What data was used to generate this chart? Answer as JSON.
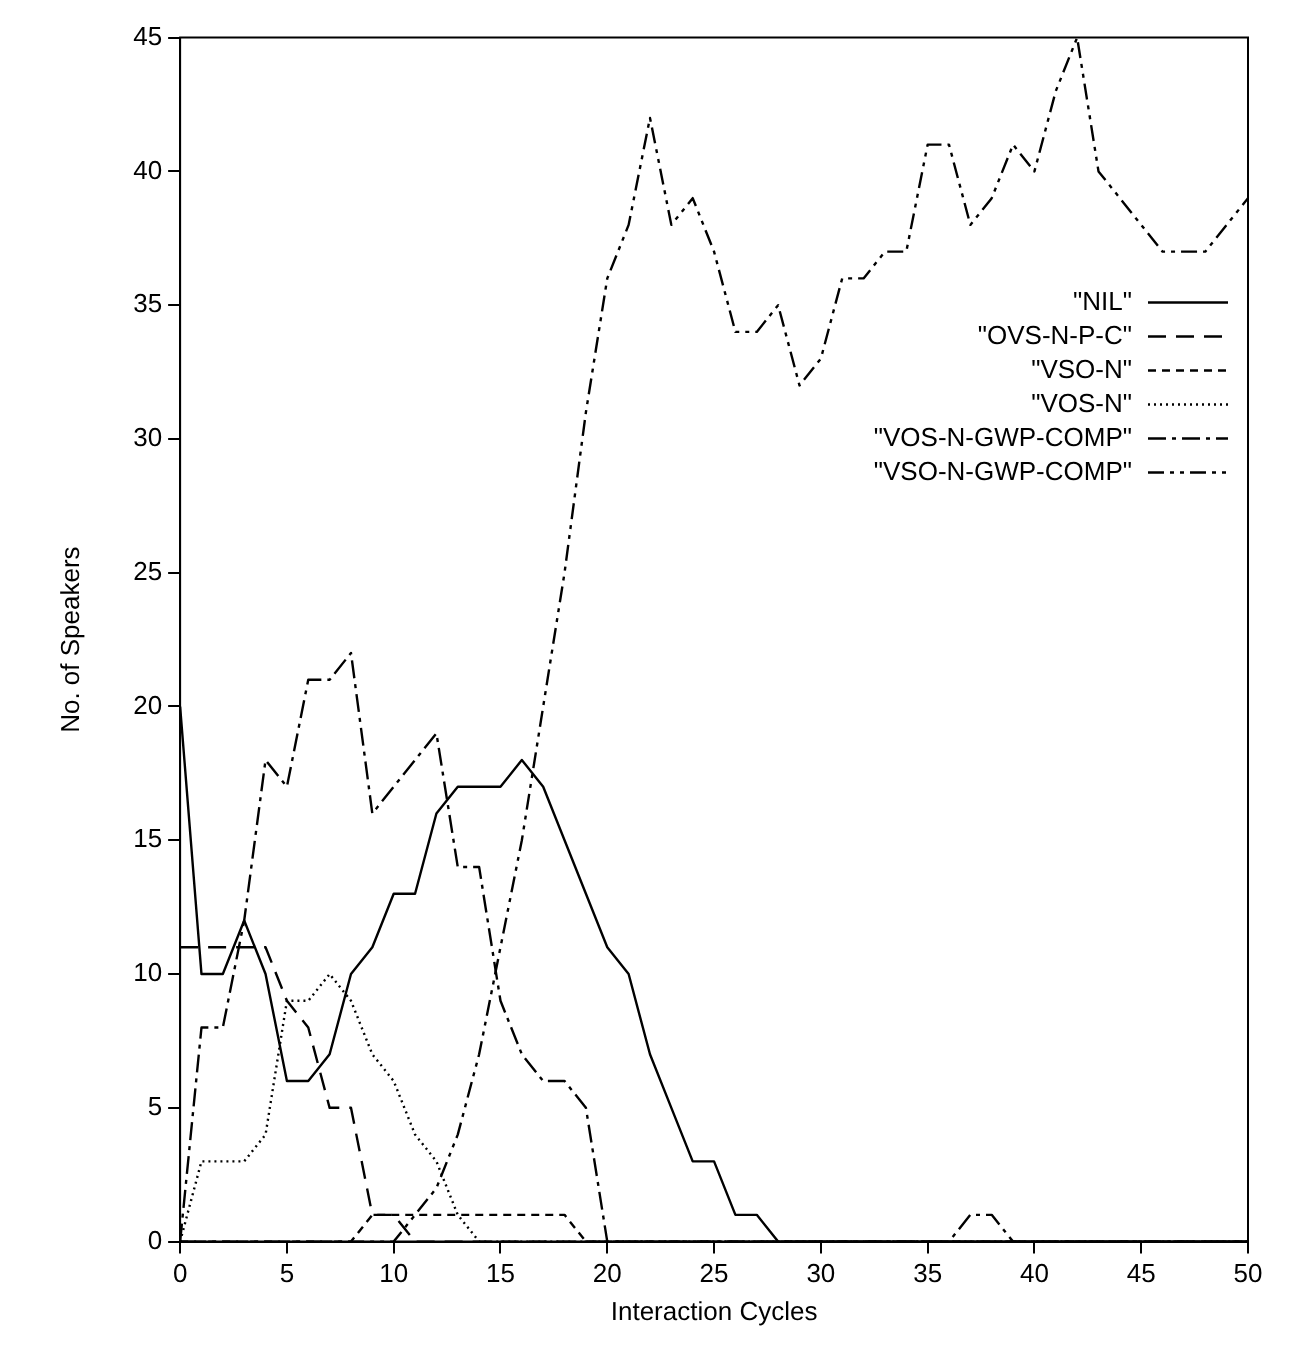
{
  "chart_data": {
    "type": "line",
    "xlabel": "Interaction Cycles",
    "ylabel": "No. of Speakers",
    "x": [
      0,
      1,
      2,
      3,
      4,
      5,
      6,
      7,
      8,
      9,
      10,
      11,
      12,
      13,
      14,
      15,
      16,
      17,
      18,
      19,
      20,
      21,
      22,
      23,
      24,
      25,
      26,
      27,
      28,
      29,
      30,
      31,
      32,
      33,
      34,
      35,
      36,
      37,
      38,
      39,
      40,
      41,
      42,
      43,
      44,
      45,
      46,
      47,
      48,
      49,
      50
    ],
    "xlim": [
      0,
      50
    ],
    "xticks": [
      0,
      5,
      10,
      15,
      20,
      25,
      30,
      35,
      40,
      45,
      50
    ],
    "ylim": [
      0,
      45
    ],
    "yticks": [
      0,
      5,
      10,
      15,
      20,
      25,
      30,
      35,
      40,
      45
    ],
    "grid": false,
    "legend": "top right",
    "marker": "none",
    "series": [
      {
        "name": "\"NIL\"",
        "color": "#000000",
        "line_style": "solid",
        "values": [
          20,
          10,
          10,
          12,
          10,
          6,
          6,
          7,
          10,
          11,
          13,
          13,
          16,
          17,
          17,
          17,
          18,
          17,
          15,
          13,
          11,
          10,
          7,
          5,
          3,
          3,
          1,
          1,
          0,
          0,
          0,
          0,
          0,
          0,
          0,
          0,
          0,
          0,
          0,
          0,
          0,
          0,
          0,
          0,
          0,
          0,
          0,
          0,
          0,
          0,
          0
        ]
      },
      {
        "name": "\"OVS-N-P-C\"",
        "color": "#000000",
        "line_style": "dashed",
        "values": [
          11,
          11,
          11,
          11,
          11,
          9,
          8,
          5,
          5,
          1,
          1,
          0,
          0,
          0,
          0,
          0,
          0,
          0,
          0,
          0,
          0,
          0,
          0,
          0,
          0,
          0,
          0,
          0,
          0,
          0,
          0,
          0,
          0,
          0,
          0,
          0,
          0,
          0,
          0,
          0,
          0,
          0,
          0,
          0,
          0,
          0,
          0,
          0,
          0,
          0,
          0
        ]
      },
      {
        "name": "\"VSO-N\"",
        "color": "#000000",
        "line_style": "dashed",
        "values": [
          0,
          0,
          0,
          0,
          0,
          0,
          0,
          0,
          0,
          1,
          1,
          1,
          1,
          1,
          1,
          1,
          1,
          1,
          1,
          0,
          0,
          0,
          0,
          0,
          0,
          0,
          0,
          0,
          0,
          0,
          0,
          0,
          0,
          0,
          0,
          0,
          0,
          0,
          0,
          0,
          0,
          0,
          0,
          0,
          0,
          0,
          0,
          0,
          0,
          0,
          0
        ]
      },
      {
        "name": "\"VOS-N\"",
        "color": "#000000",
        "line_style": "dotted",
        "values": [
          0,
          3,
          3,
          3,
          4,
          9,
          9,
          10,
          9,
          7,
          6,
          4,
          3,
          1,
          0,
          0,
          0,
          0,
          0,
          0,
          0,
          0,
          0,
          0,
          0,
          0,
          0,
          0,
          0,
          0,
          0,
          0,
          0,
          0,
          0,
          0,
          0,
          0,
          0,
          0,
          0,
          0,
          0,
          0,
          0,
          0,
          0,
          0,
          0,
          0,
          0
        ]
      },
      {
        "name": "\"VOS-N-GWP-COMP\"",
        "color": "#000000",
        "line_style": "dashed",
        "values": [
          0,
          8,
          8,
          12,
          18,
          17,
          21,
          21,
          22,
          16,
          17,
          18,
          19,
          14,
          14,
          9,
          7,
          6,
          6,
          5,
          0,
          0,
          0,
          0,
          0,
          0,
          0,
          0,
          0,
          0,
          0,
          0,
          0,
          0,
          0,
          0,
          0,
          1,
          1,
          0,
          0,
          0,
          0,
          0,
          0,
          0,
          0,
          0,
          0,
          0,
          0
        ]
      },
      {
        "name": "\"VSO-N-GWP-COMP\"",
        "color": "#000000",
        "line_style": "dashed",
        "values": [
          0,
          0,
          0,
          0,
          0,
          0,
          0,
          0,
          0,
          0,
          0,
          1,
          2,
          4,
          7,
          11,
          15,
          20,
          25,
          31,
          36,
          38,
          42,
          38,
          39,
          37,
          34,
          34,
          35,
          32,
          33,
          36,
          36,
          37,
          37,
          41,
          41,
          38,
          39,
          41,
          40,
          43,
          45,
          40,
          39,
          38,
          37,
          37,
          37,
          38,
          39
        ]
      }
    ]
  }
}
